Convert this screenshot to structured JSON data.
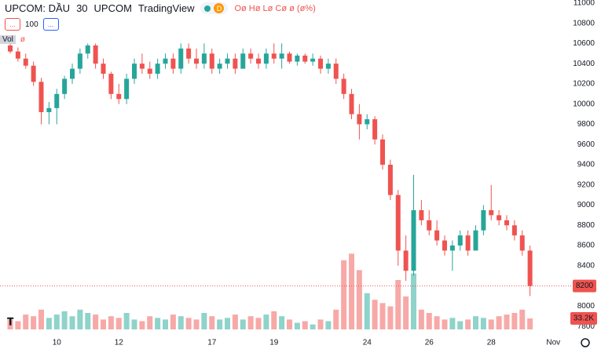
{
  "header": {
    "symbol": "UPCOM: DẦU",
    "interval": "30",
    "exchange": "UPCOM",
    "source": "TradingView",
    "badge": "D",
    "ohlc": "Oø Hø Lø Cø ø (ø%)",
    "buttons": [
      "...",
      "100",
      "..."
    ],
    "volume_title": "Vol",
    "volume_value": "ø"
  },
  "chart_data": {
    "type": "candlestick",
    "categories": [
      null,
      null,
      null,
      null,
      null,
      null,
      "10",
      null,
      null,
      null,
      null,
      null,
      null,
      null,
      "12",
      null,
      null,
      null,
      null,
      null,
      null,
      null,
      null,
      null,
      null,
      null,
      "17",
      null,
      null,
      null,
      null,
      null,
      null,
      null,
      "19",
      null,
      null,
      null,
      null,
      null,
      null,
      null,
      null,
      null,
      null,
      null,
      "24",
      null,
      null,
      null,
      null,
      null,
      null,
      null,
      "26",
      null,
      null,
      null,
      null,
      null,
      null,
      null,
      "28",
      null,
      null,
      null,
      null,
      null,
      null,
      null,
      "Nov"
    ],
    "open": [
      10580,
      10520,
      10450,
      10380,
      10220,
      9920,
      9960,
      10100,
      10250,
      10350,
      10500,
      10580,
      10400,
      10300,
      10100,
      10050,
      10250,
      10400,
      10350,
      10300,
      10400,
      10450,
      10350,
      10550,
      10450,
      10400,
      10500,
      10350,
      10400,
      10450,
      10350,
      10500,
      10450,
      10400,
      10500,
      10450,
      10500,
      10420,
      10480,
      10420,
      10450,
      10350,
      10400,
      10250,
      10100,
      9900,
      9800,
      9850,
      9650,
      9400,
      9100,
      8550,
      8350,
      8950,
      8850,
      8750,
      8650,
      8550,
      8600,
      8700,
      8550,
      8750,
      8950,
      8900,
      8850,
      8800,
      8700,
      8550,
      null,
      null,
      null
    ],
    "high": [
      10620,
      10560,
      10500,
      10420,
      10260,
      10020,
      10150,
      10280,
      10400,
      10550,
      10600,
      10600,
      10450,
      10320,
      10200,
      10300,
      10450,
      10500,
      10420,
      10450,
      10500,
      10500,
      10600,
      10600,
      10550,
      10600,
      10550,
      10450,
      10500,
      10500,
      10550,
      10550,
      10500,
      10550,
      10600,
      10600,
      10520,
      10500,
      10500,
      10500,
      10480,
      10450,
      10450,
      10300,
      10150,
      10000,
      9900,
      9880,
      9700,
      9450,
      9150,
      8700,
      9300,
      9050,
      8950,
      8850,
      8700,
      8650,
      8750,
      8750,
      8800,
      9000,
      9200,
      8950,
      8900,
      8850,
      8750,
      8600,
      null,
      null,
      null
    ],
    "low": [
      10500,
      10420,
      10350,
      10180,
      9800,
      9800,
      9800,
      10050,
      10200,
      10300,
      10450,
      10350,
      10250,
      10050,
      10000,
      10000,
      10200,
      10300,
      10250,
      10250,
      10350,
      10300,
      10300,
      10400,
      10350,
      10350,
      10300,
      10300,
      10350,
      10300,
      10350,
      10400,
      10350,
      10350,
      10400,
      10350,
      10400,
      10380,
      10400,
      10380,
      10300,
      10300,
      10200,
      10050,
      9850,
      9650,
      9750,
      9600,
      9350,
      9050,
      8400,
      8250,
      8300,
      8800,
      8700,
      8600,
      8500,
      8350,
      8550,
      8500,
      8550,
      8700,
      8850,
      8800,
      8750,
      8650,
      8500,
      8100,
      null,
      null,
      null
    ],
    "close": [
      10520,
      10450,
      10380,
      10220,
      9920,
      9960,
      10100,
      10250,
      10350,
      10500,
      10580,
      10400,
      10300,
      10100,
      10050,
      10250,
      10400,
      10350,
      10300,
      10400,
      10450,
      10350,
      10550,
      10450,
      10400,
      10500,
      10350,
      10400,
      10450,
      10350,
      10500,
      10450,
      10400,
      10500,
      10450,
      10500,
      10420,
      10480,
      10420,
      10450,
      10350,
      10400,
      10250,
      10100,
      9900,
      9800,
      9850,
      9650,
      9400,
      9100,
      8550,
      8350,
      8950,
      8850,
      8750,
      8650,
      8550,
      8600,
      8700,
      8550,
      8750,
      8950,
      8900,
      8850,
      8800,
      8700,
      8550,
      8200,
      null,
      null,
      null
    ],
    "volume": [
      30000,
      25000,
      45000,
      40000,
      60000,
      35000,
      45000,
      55000,
      40000,
      60000,
      50000,
      45000,
      30000,
      40000,
      35000,
      50000,
      30000,
      25000,
      40000,
      35000,
      30000,
      45000,
      40000,
      35000,
      30000,
      50000,
      40000,
      30000,
      35000,
      45000,
      30000,
      40000,
      35000,
      45000,
      55000,
      40000,
      30000,
      20000,
      25000,
      15000,
      30000,
      25000,
      60000,
      210000,
      230000,
      180000,
      110000,
      90000,
      80000,
      70000,
      150000,
      100000,
      170000,
      60000,
      50000,
      40000,
      30000,
      35000,
      25000,
      30000,
      40000,
      35000,
      30000,
      40000,
      45000,
      50000,
      60000,
      33200,
      null,
      null,
      null
    ],
    "last_volume_label": "33.2K",
    "ylim": [
      7700,
      11030
    ],
    "yticks": [
      7800,
      8000,
      8400,
      8600,
      8800,
      9000,
      9200,
      9400,
      9600,
      9800,
      10000,
      10200,
      10400,
      10600,
      10800,
      11000
    ],
    "volume_lim": [
      0,
      250000
    ],
    "up_color": "#26a69a",
    "down_color": "#ef5350",
    "up_volume_color": "#8fd3ca",
    "down_volume_color": "#f7a9a7"
  }
}
